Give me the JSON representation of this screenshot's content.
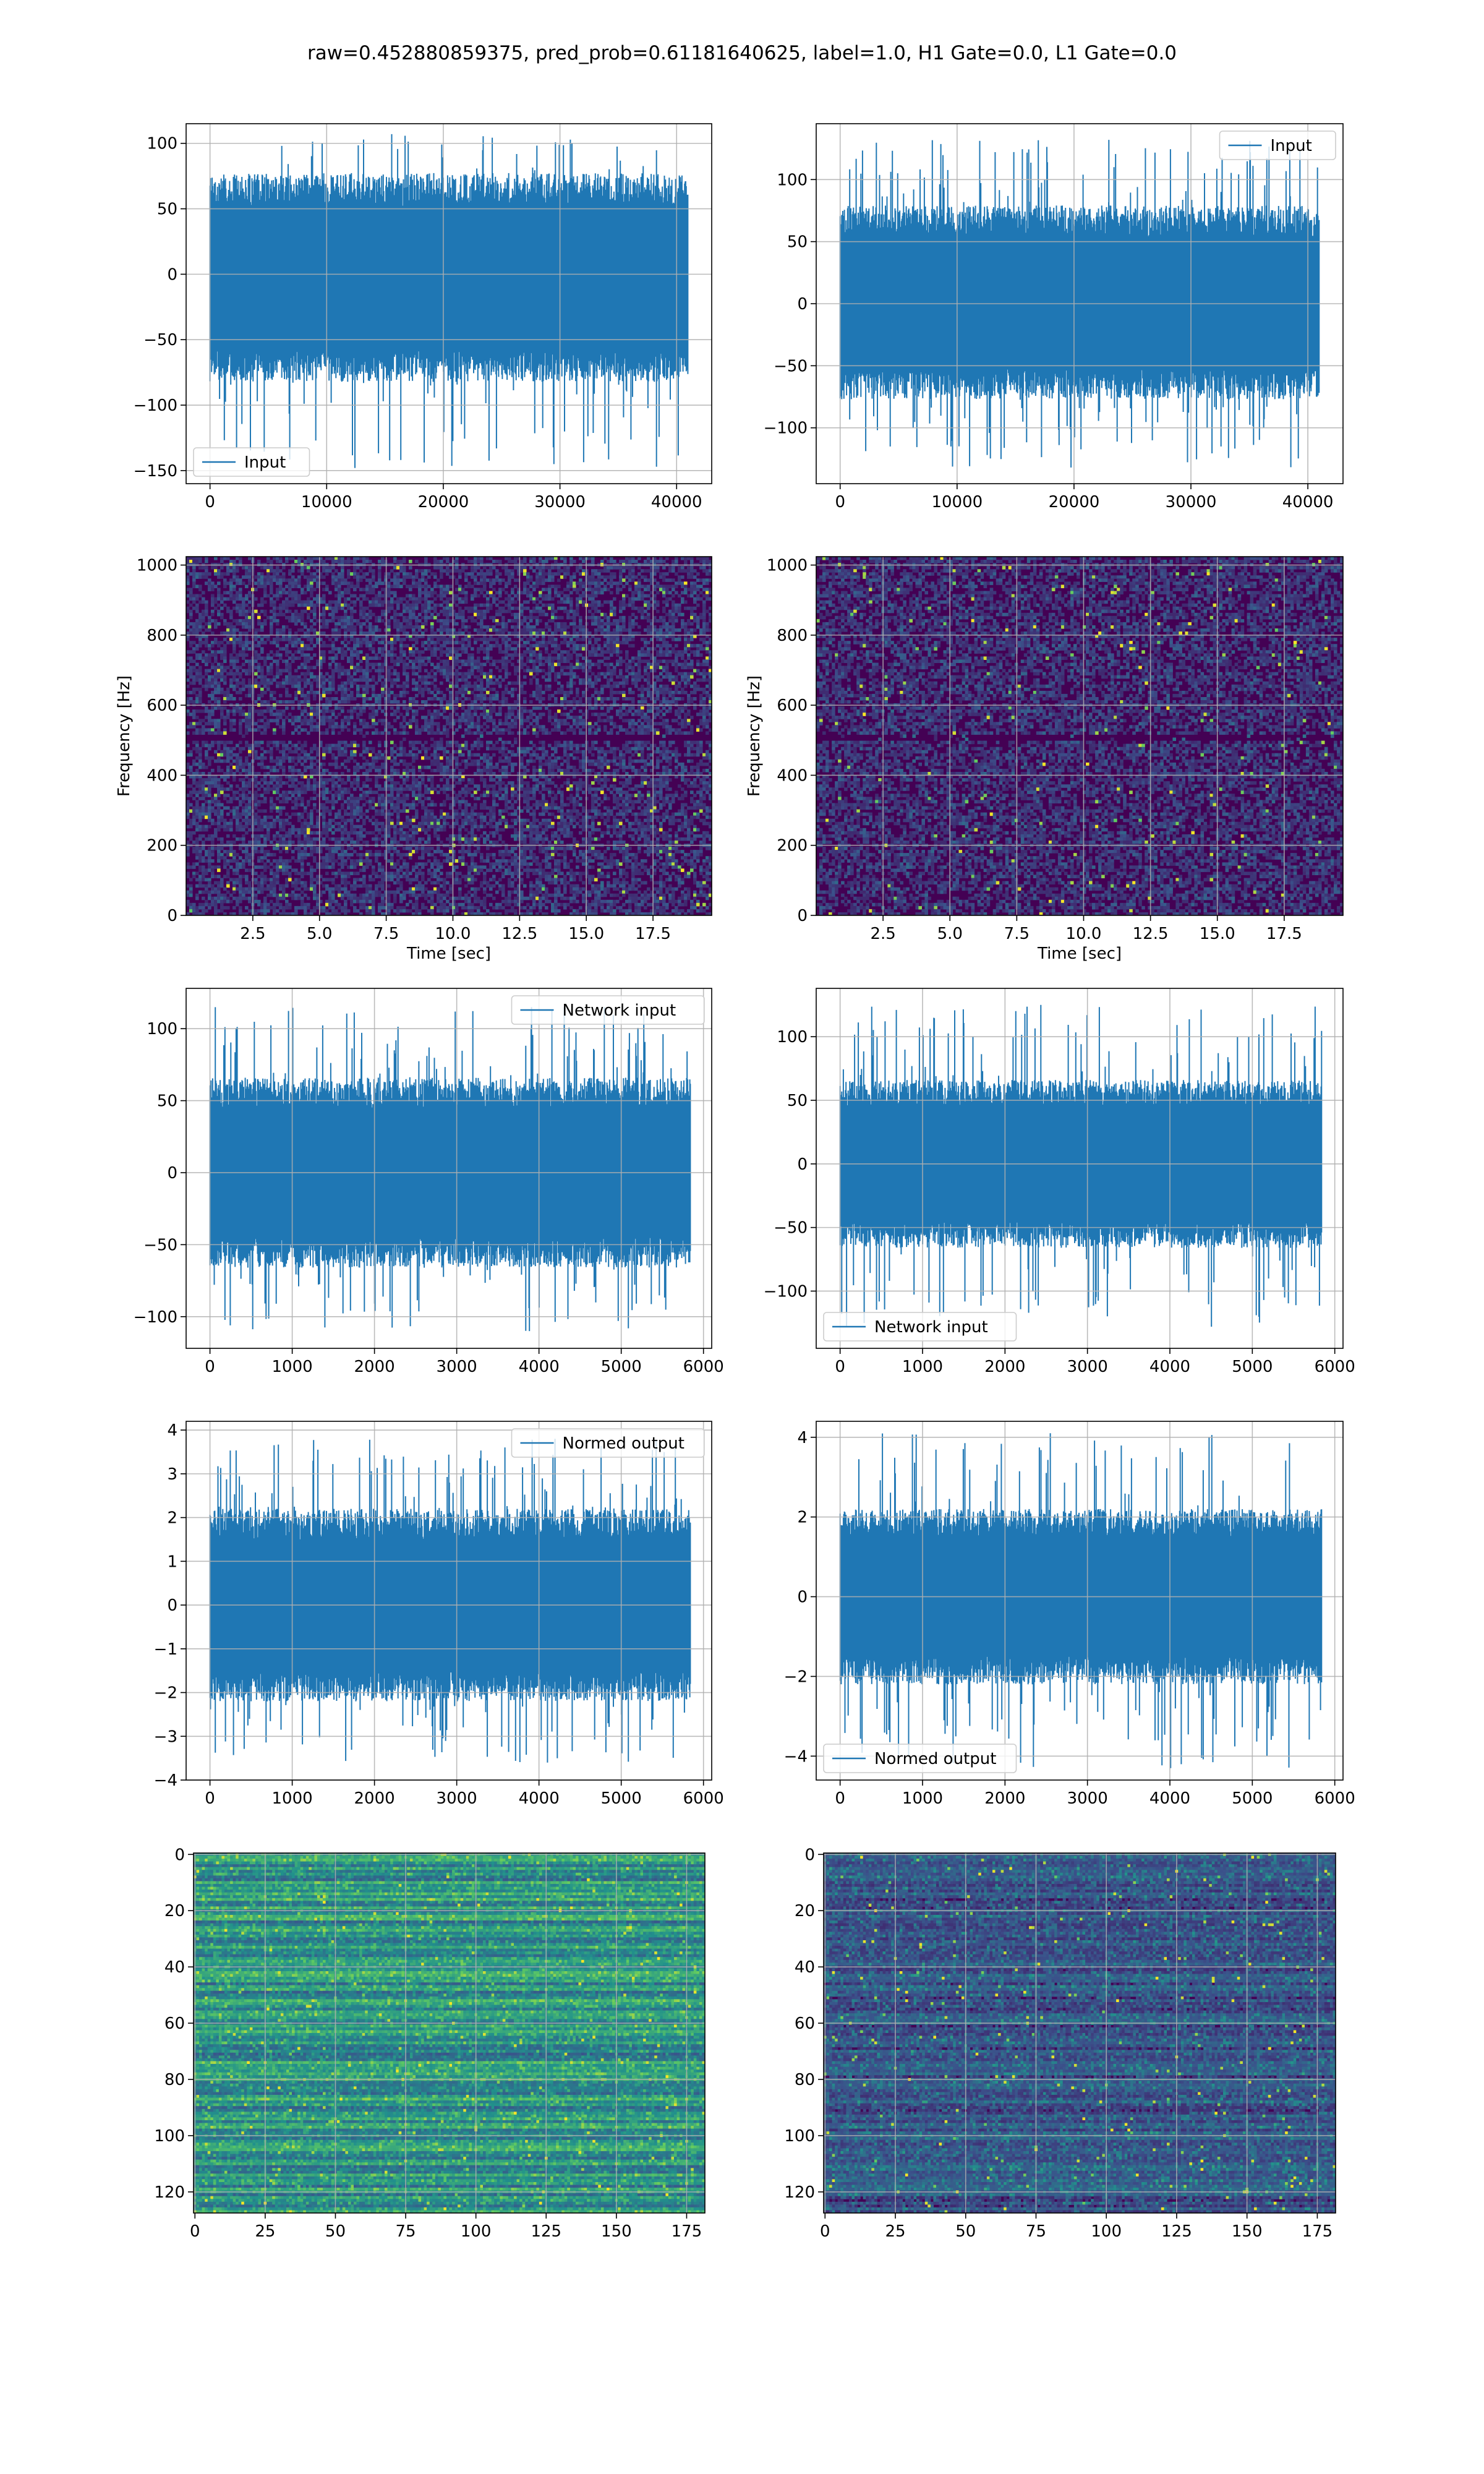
{
  "title": "raw=0.452880859375, pred_prob=0.61181640625, label=1.0, H1 Gate=0.0, L1 Gate=0.0",
  "colors": {
    "line": "#1f77b4",
    "grid": "#b0b0b0",
    "axes": "#000000",
    "viridis_low": "#440154",
    "viridis_mid": "#21918c",
    "viridis_high": "#fde725"
  },
  "chart_data": [
    {
      "id": "raw-h1",
      "type": "line",
      "xlim": [
        -2048,
        43008
      ],
      "ylim": [
        -160,
        115
      ],
      "xticks": [
        0,
        10000,
        20000,
        30000,
        40000
      ],
      "xtick_labels": [
        "0",
        "10000",
        "20000",
        "30000",
        "40000"
      ],
      "yticks": [
        -150,
        -100,
        -50,
        0,
        50,
        100
      ],
      "ytick_labels": [
        "−150",
        "−100",
        "−50",
        "0",
        "50",
        "100"
      ],
      "series": [
        {
          "name": "Input",
          "n_points": 40960,
          "band": [
            -75,
            70
          ],
          "spikes_max": 107,
          "spikes_min": -148
        }
      ],
      "legend": "lower left",
      "grid": true,
      "xlabel": "",
      "ylabel": ""
    },
    {
      "id": "raw-l1",
      "type": "line",
      "xlim": [
        -2048,
        43008
      ],
      "ylim": [
        -145,
        145
      ],
      "xticks": [
        0,
        10000,
        20000,
        30000,
        40000
      ],
      "xtick_labels": [
        "0",
        "10000",
        "20000",
        "30000",
        "40000"
      ],
      "yticks": [
        -100,
        -50,
        0,
        50,
        100
      ],
      "ytick_labels": [
        "−100",
        "−50",
        "0",
        "50",
        "100"
      ],
      "series": [
        {
          "name": "Input",
          "n_points": 40960,
          "band": [
            -70,
            72
          ],
          "spikes_max": 132,
          "spikes_min": -132
        }
      ],
      "legend": "upper right",
      "grid": true,
      "xlabel": "",
      "ylabel": ""
    },
    {
      "id": "spec-h1",
      "type": "heatmap",
      "xlim": [
        0,
        19.7
      ],
      "ylim": [
        0,
        1024
      ],
      "xticks": [
        2.5,
        5.0,
        7.5,
        10.0,
        12.5,
        15.0,
        17.5
      ],
      "xtick_labels": [
        "2.5",
        "5.0",
        "7.5",
        "10.0",
        "12.5",
        "15.0",
        "17.5"
      ],
      "yticks": [
        0,
        200,
        400,
        600,
        800,
        1000
      ],
      "ytick_labels": [
        "0",
        "200",
        "400",
        "600",
        "800",
        "1000"
      ],
      "xlabel": "Time [sec]",
      "ylabel": "Frequency [Hz]",
      "grid": true,
      "colormap": "viridis"
    },
    {
      "id": "spec-l1",
      "type": "heatmap",
      "xlim": [
        0,
        19.7
      ],
      "ylim": [
        0,
        1024
      ],
      "xticks": [
        2.5,
        5.0,
        7.5,
        10.0,
        12.5,
        15.0,
        17.5
      ],
      "xtick_labels": [
        "2.5",
        "5.0",
        "7.5",
        "10.0",
        "12.5",
        "15.0",
        "17.5"
      ],
      "yticks": [
        0,
        200,
        400,
        600,
        800,
        1000
      ],
      "ytick_labels": [
        "0",
        "200",
        "400",
        "600",
        "800",
        "1000"
      ],
      "xlabel": "Time [sec]",
      "ylabel": "Frequency [Hz]",
      "grid": true,
      "colormap": "viridis"
    },
    {
      "id": "net-h1",
      "type": "line",
      "xlim": [
        -290,
        6100
      ],
      "ylim": [
        -122,
        128
      ],
      "xticks": [
        0,
        1000,
        2000,
        3000,
        4000,
        5000,
        6000
      ],
      "xtick_labels": [
        "0",
        "1000",
        "2000",
        "3000",
        "4000",
        "5000",
        "6000"
      ],
      "yticks": [
        -100,
        -50,
        0,
        50,
        100
      ],
      "ytick_labels": [
        "−100",
        "−50",
        "0",
        "50",
        "100"
      ],
      "series": [
        {
          "name": "Network input",
          "n_points": 5840,
          "band": [
            -60,
            60
          ],
          "spikes_max": 115,
          "spikes_min": -110
        }
      ],
      "legend": "upper right",
      "grid": true,
      "xlabel": "",
      "ylabel": ""
    },
    {
      "id": "net-l1",
      "type": "line",
      "xlim": [
        -290,
        6100
      ],
      "ylim": [
        -145,
        138
      ],
      "xticks": [
        0,
        1000,
        2000,
        3000,
        4000,
        5000,
        6000
      ],
      "xtick_labels": [
        "0",
        "1000",
        "2000",
        "3000",
        "4000",
        "5000",
        "6000"
      ],
      "yticks": [
        -100,
        -50,
        0,
        50,
        100
      ],
      "ytick_labels": [
        "−100",
        "−50",
        "0",
        "50",
        "100"
      ],
      "series": [
        {
          "name": "Network input",
          "n_points": 5840,
          "band": [
            -60,
            60
          ],
          "spikes_max": 125,
          "spikes_min": -128
        }
      ],
      "legend": "lower left",
      "grid": true,
      "xlabel": "",
      "ylabel": ""
    },
    {
      "id": "norm-h1",
      "type": "line",
      "xlim": [
        -290,
        6100
      ],
      "ylim": [
        -4,
        4.2
      ],
      "xticks": [
        0,
        1000,
        2000,
        3000,
        4000,
        5000,
        6000
      ],
      "xtick_labels": [
        "0",
        "1000",
        "2000",
        "3000",
        "4000",
        "5000",
        "6000"
      ],
      "yticks": [
        -4,
        -3,
        -2,
        -1,
        0,
        1,
        2,
        3,
        4
      ],
      "ytick_labels": [
        "−4",
        "−3",
        "−2",
        "−1",
        "0",
        "1",
        "2",
        "3",
        "4"
      ],
      "series": [
        {
          "name": "Normed output",
          "n_points": 5840,
          "band": [
            -2,
            2
          ],
          "spikes_max": 3.8,
          "spikes_min": -3.6
        }
      ],
      "legend": "upper right",
      "grid": true,
      "xlabel": "",
      "ylabel": ""
    },
    {
      "id": "norm-l1",
      "type": "line",
      "xlim": [
        -290,
        6100
      ],
      "ylim": [
        -4.6,
        4.4
      ],
      "xticks": [
        0,
        1000,
        2000,
        3000,
        4000,
        5000,
        6000
      ],
      "xtick_labels": [
        "0",
        "1000",
        "2000",
        "3000",
        "4000",
        "5000",
        "6000"
      ],
      "yticks": [
        -4,
        -2,
        0,
        2,
        4
      ],
      "ytick_labels": [
        "−4",
        "−2",
        "0",
        "2",
        "4"
      ],
      "series": [
        {
          "name": "Normed output",
          "n_points": 5840,
          "band": [
            -2,
            2
          ],
          "spikes_max": 4.1,
          "spikes_min": -4.3
        }
      ],
      "legend": "lower left",
      "grid": true,
      "xlabel": "",
      "ylabel": ""
    },
    {
      "id": "out-h1",
      "type": "heatmap",
      "xlim": [
        -0.5,
        181.5
      ],
      "ylim": [
        127.5,
        -0.5
      ],
      "xticks": [
        0,
        25,
        50,
        75,
        100,
        125,
        150,
        175
      ],
      "xtick_labels": [
        "0",
        "25",
        "50",
        "75",
        "100",
        "125",
        "150",
        "175"
      ],
      "yticks": [
        0,
        20,
        40,
        60,
        80,
        100,
        120
      ],
      "ytick_labels": [
        "0",
        "20",
        "40",
        "60",
        "80",
        "100",
        "120"
      ],
      "grid": true,
      "colormap": "viridis",
      "rows": 128,
      "cols": 182,
      "xlabel": "",
      "ylabel": ""
    },
    {
      "id": "out-l1",
      "type": "heatmap",
      "xlim": [
        -0.5,
        181.5
      ],
      "ylim": [
        127.5,
        -0.5
      ],
      "xticks": [
        0,
        25,
        50,
        75,
        100,
        125,
        150,
        175
      ],
      "xtick_labels": [
        "0",
        "25",
        "50",
        "75",
        "100",
        "125",
        "150",
        "175"
      ],
      "yticks": [
        0,
        20,
        40,
        60,
        80,
        100,
        120
      ],
      "ytick_labels": [
        "0",
        "20",
        "40",
        "60",
        "80",
        "100",
        "120"
      ],
      "grid": true,
      "colormap": "viridis",
      "rows": 128,
      "cols": 182,
      "xlabel": "",
      "ylabel": ""
    }
  ]
}
